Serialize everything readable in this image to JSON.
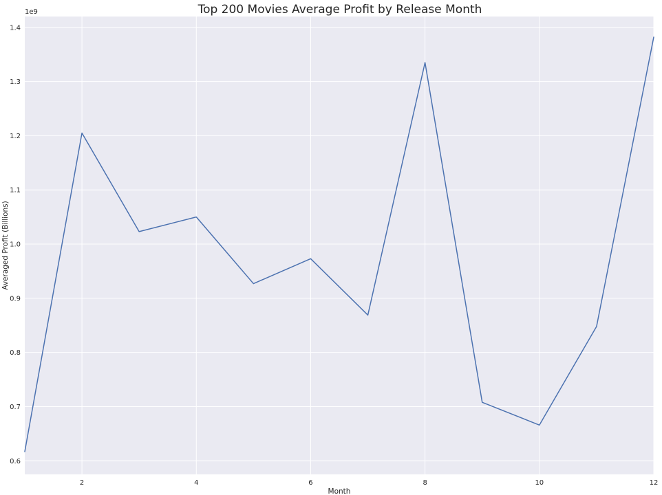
{
  "chart_data": {
    "type": "line",
    "title": "Top 200 Movies Average Profit by Release Month",
    "xlabel": "Month",
    "ylabel": "Averaged Profit (Billions)",
    "y_offset_label": "1e9",
    "x": [
      1,
      2,
      3,
      4,
      5,
      6,
      7,
      8,
      9,
      10,
      11,
      12
    ],
    "series": [
      {
        "values": [
          0.617,
          1.205,
          1.023,
          1.05,
          0.927,
          0.973,
          0.869,
          1.335,
          0.708,
          0.666,
          0.848,
          1.382
        ]
      }
    ],
    "xlim": [
      1,
      12
    ],
    "ylim": [
      0.575,
      1.42
    ],
    "x_ticks": [
      2,
      4,
      6,
      8,
      10,
      12
    ],
    "x_tick_labels": [
      "2",
      "4",
      "6",
      "8",
      "10",
      "12"
    ],
    "y_ticks": [
      0.6,
      0.7,
      0.8,
      0.9,
      1.0,
      1.1,
      1.2,
      1.3,
      1.4
    ],
    "y_tick_labels": [
      "0.6",
      "0.7",
      "0.8",
      "0.9",
      "1.0",
      "1.1",
      "1.2",
      "1.3",
      "1.4"
    ],
    "grid": true,
    "colors": {
      "plot_background": "#eaeaf2",
      "grid": "#ffffff",
      "line": "#4c72b0"
    }
  }
}
